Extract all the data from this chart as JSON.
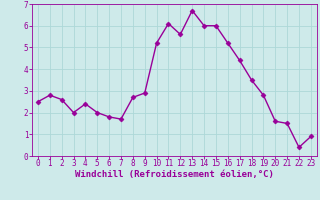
{
  "x": [
    0,
    1,
    2,
    3,
    4,
    5,
    6,
    7,
    8,
    9,
    10,
    11,
    12,
    13,
    14,
    15,
    16,
    17,
    18,
    19,
    20,
    21,
    22,
    23
  ],
  "y": [
    2.5,
    2.8,
    2.6,
    2.0,
    2.4,
    2.0,
    1.8,
    1.7,
    2.7,
    2.9,
    5.2,
    6.1,
    5.6,
    6.7,
    6.0,
    6.0,
    5.2,
    4.4,
    3.5,
    2.8,
    1.6,
    1.5,
    0.4,
    0.9
  ],
  "line_color": "#990099",
  "marker": "D",
  "marker_size": 2.5,
  "bg_color": "#ceeaea",
  "grid_color": "#add8d8",
  "xlabel": "Windchill (Refroidissement éolien,°C)",
  "ylim": [
    0,
    7
  ],
  "xlim_min": -0.5,
  "xlim_max": 23.5,
  "yticks": [
    0,
    1,
    2,
    3,
    4,
    5,
    6,
    7
  ],
  "xticks": [
    0,
    1,
    2,
    3,
    4,
    5,
    6,
    7,
    8,
    9,
    10,
    11,
    12,
    13,
    14,
    15,
    16,
    17,
    18,
    19,
    20,
    21,
    22,
    23
  ],
  "tick_color": "#990099",
  "label_color": "#990099",
  "tick_fontsize": 5.5,
  "xlabel_fontsize": 6.5,
  "line_width": 1.0
}
